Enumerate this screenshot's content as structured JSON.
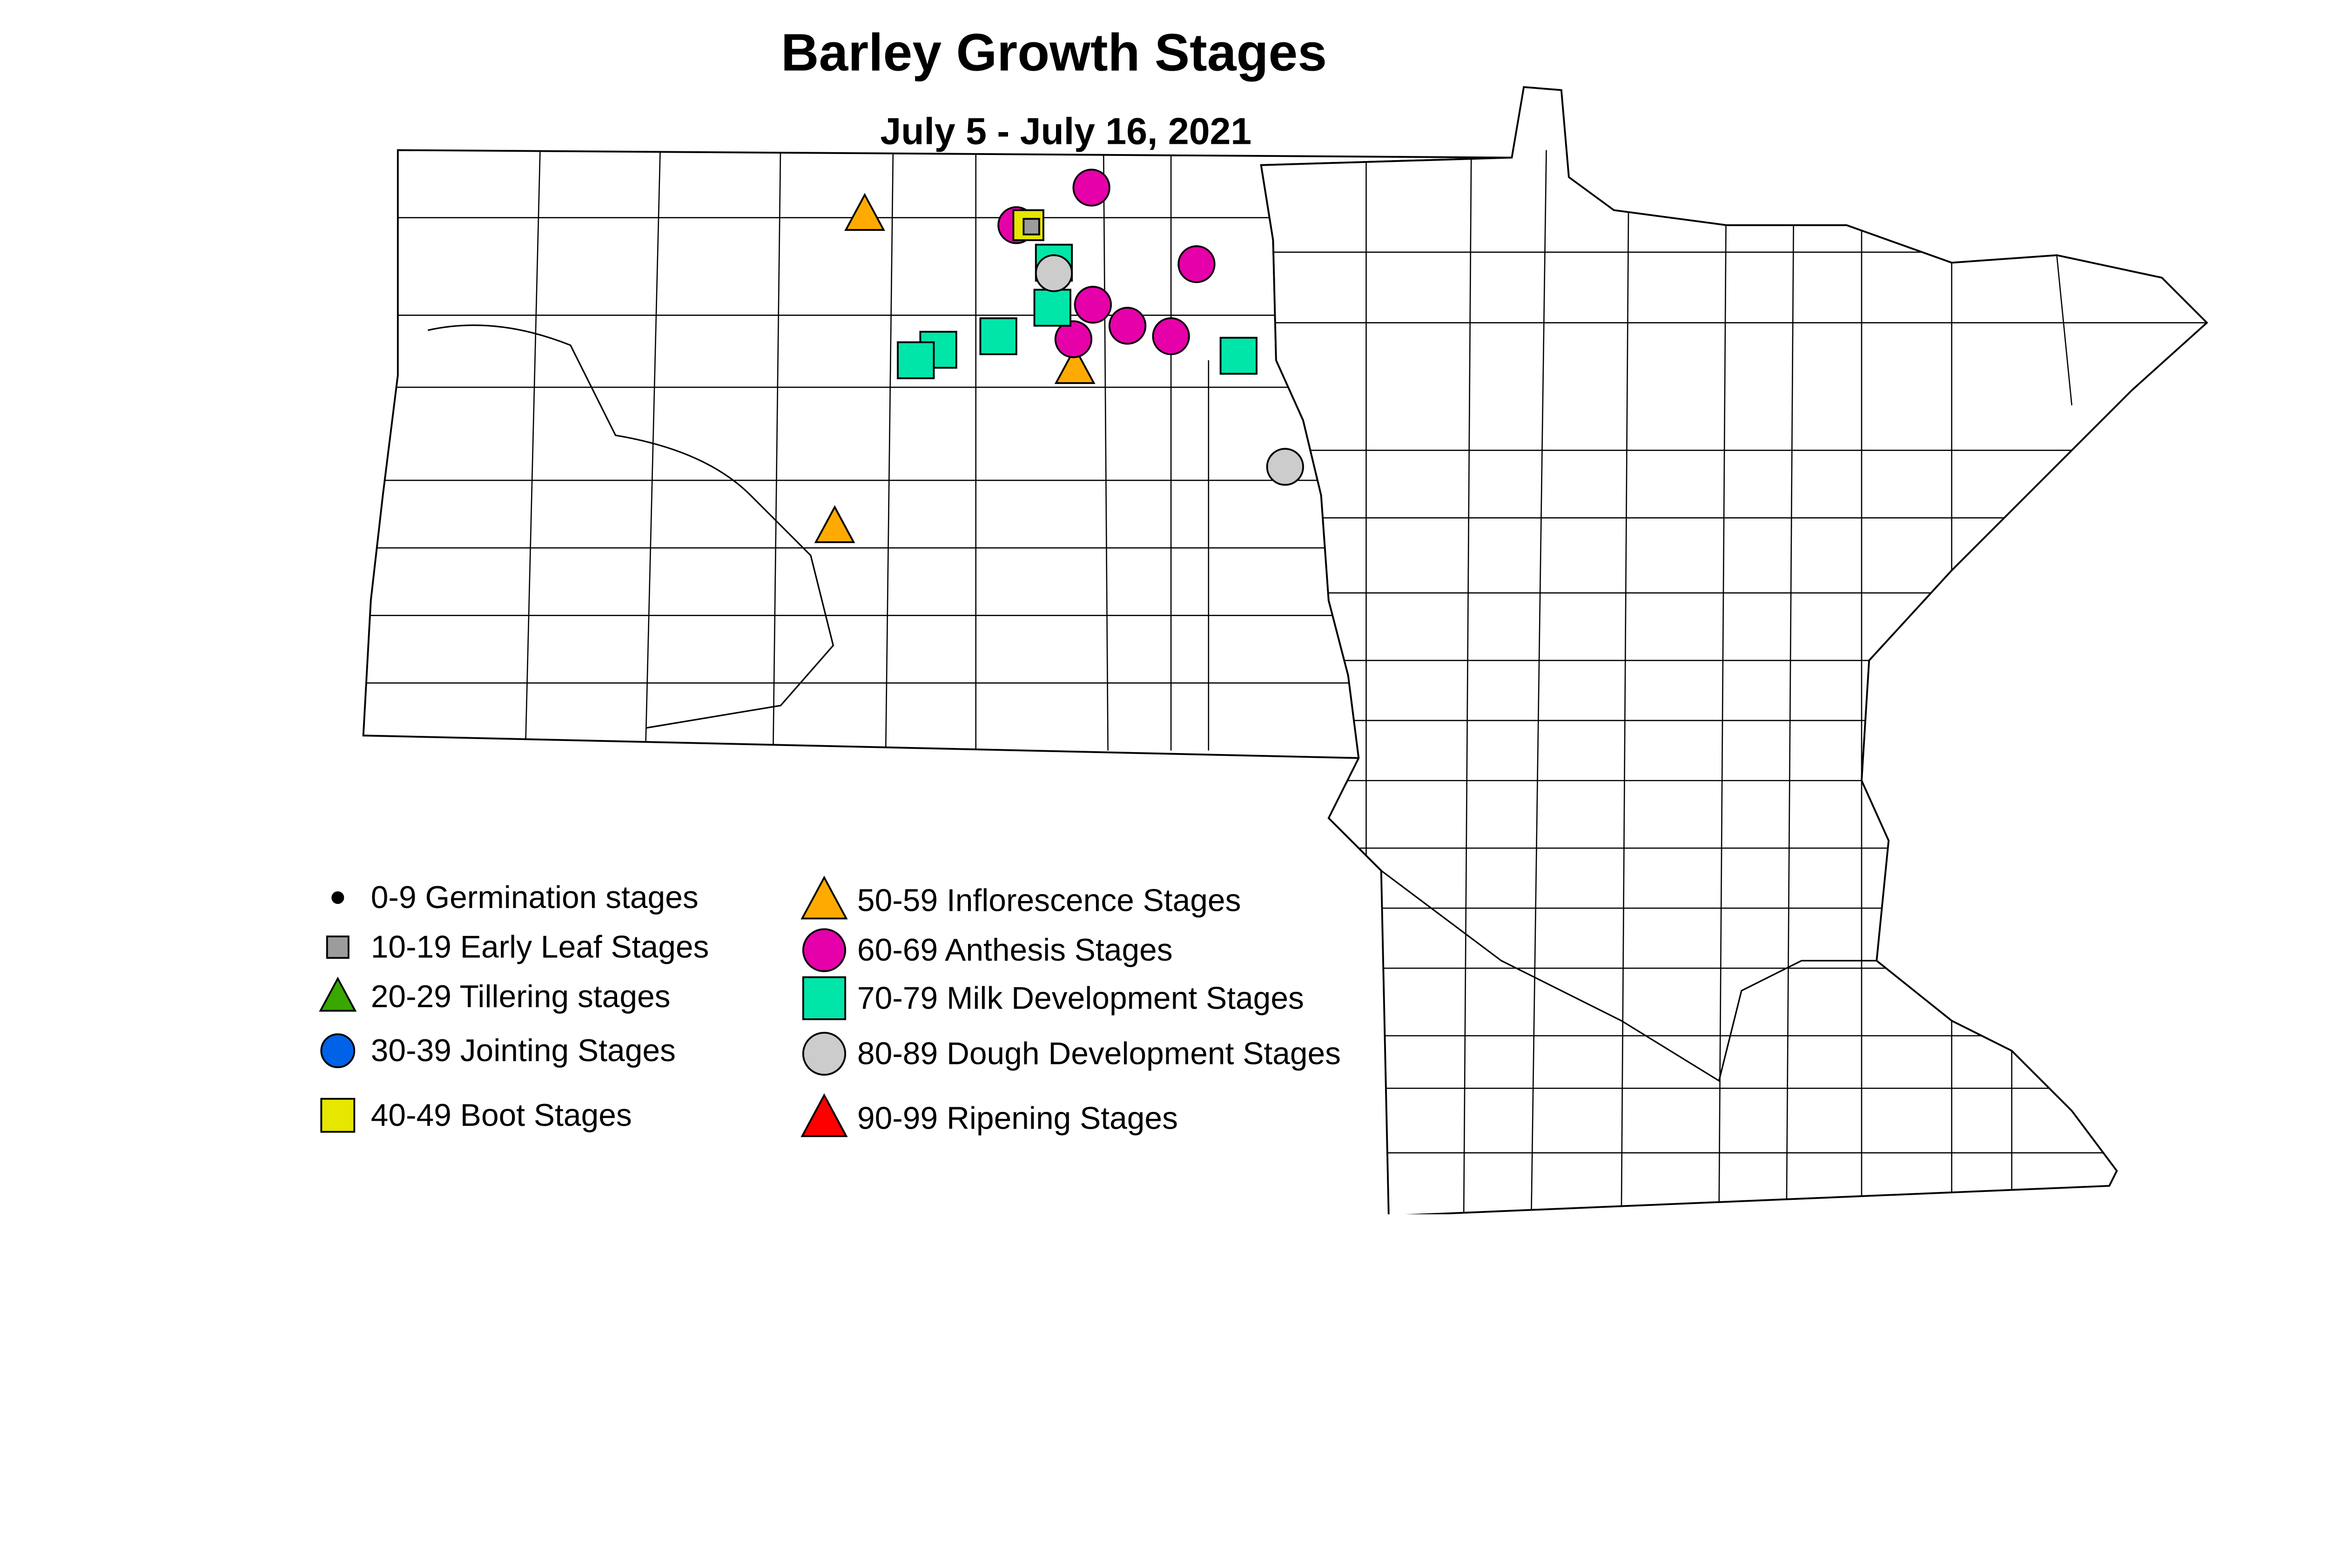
{
  "title": "Barley Growth Stages",
  "subtitle": "July 5 - July 16, 2021",
  "colors": {
    "germination": "#000000",
    "early_leaf": "#9c9c9c",
    "tillering": "#38a800",
    "jointing": "#0062e6",
    "boot": "#e6e600",
    "inflorescence": "#ffaa00",
    "anthesis": "#e600a9",
    "milk": "#00e6a9",
    "dough": "#cccccc",
    "ripening": "#ff0000"
  },
  "legend": [
    {
      "key": "germination",
      "label": "0-9 Germination stages",
      "shape": "dot"
    },
    {
      "key": "early_leaf",
      "label": "10-19 Early Leaf Stages",
      "shape": "small-square"
    },
    {
      "key": "tillering",
      "label": "20-29 Tillering stages",
      "shape": "triangle"
    },
    {
      "key": "jointing",
      "label": "30-39 Jointing Stages",
      "shape": "circle"
    },
    {
      "key": "boot",
      "label": "40-49 Boot Stages",
      "shape": "square"
    },
    {
      "key": "inflorescence",
      "label": "50-59 Inflorescence Stages",
      "shape": "triangle"
    },
    {
      "key": "anthesis",
      "label": "60-69 Anthesis Stages",
      "shape": "circle"
    },
    {
      "key": "milk",
      "label": "70-79 Milk Development Stages",
      "shape": "square"
    },
    {
      "key": "dough",
      "label": "80-89 Dough Development Stages",
      "shape": "circle"
    },
    {
      "key": "ripening",
      "label": "90-99 Ripening Stages",
      "shape": "triangle"
    }
  ],
  "observations": [
    "inflorescence",
    "inflorescence",
    "inflorescence",
    "anthesis",
    "anthesis",
    "anthesis",
    "anthesis",
    "anthesis",
    "anthesis",
    "anthesis",
    "milk",
    "milk",
    "milk",
    "milk",
    "milk",
    "milk",
    "dough",
    "dough",
    "boot",
    "early_leaf"
  ]
}
